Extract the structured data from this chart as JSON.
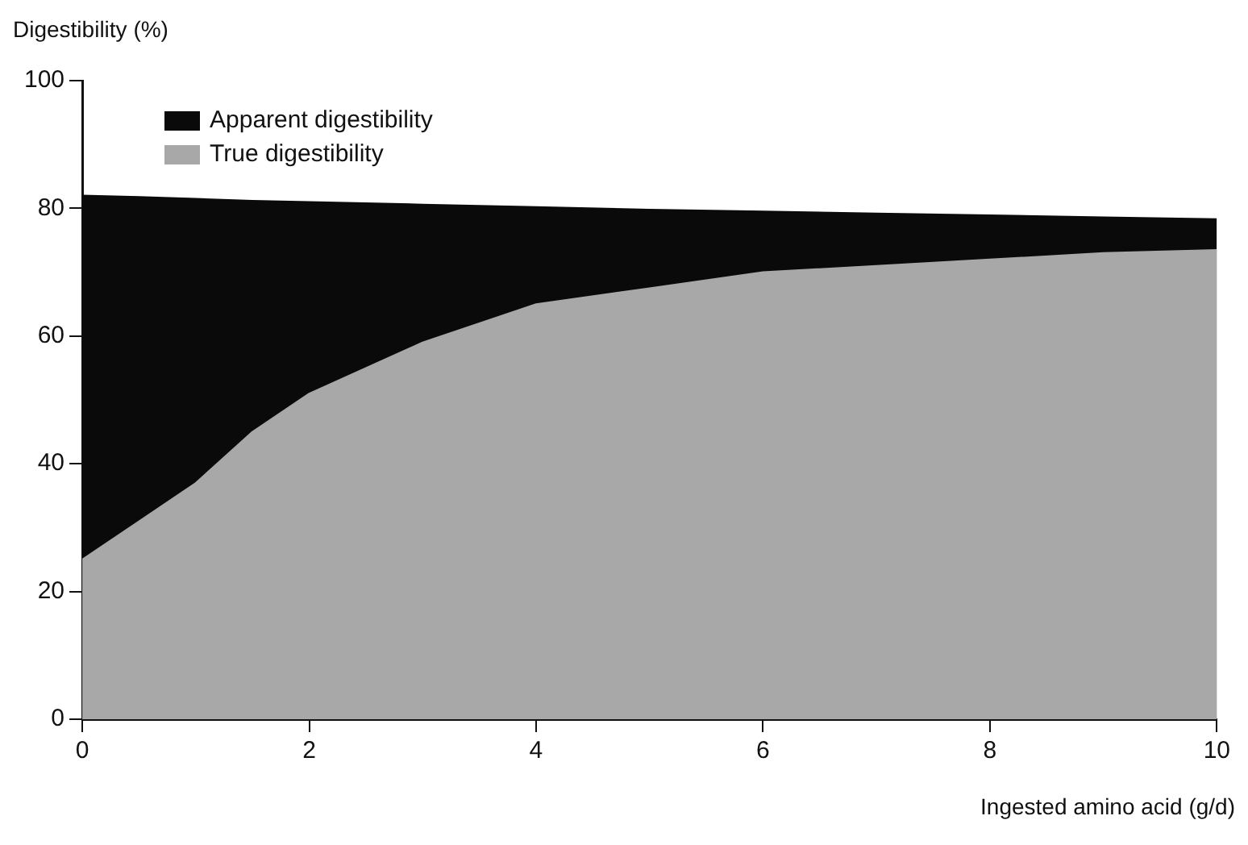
{
  "chart_data": {
    "type": "area",
    "ylabel": "Digestibility (%)",
    "xlabel": "Ingested amino acid (g/d)",
    "x": [
      0,
      0.5,
      1,
      1.5,
      2,
      3,
      4,
      5,
      6,
      7,
      8,
      9,
      10
    ],
    "series": [
      {
        "name": "Apparent digestibility",
        "color": "#0a0a0a",
        "values": [
          82,
          81.8,
          81.5,
          81.2,
          81,
          80.6,
          80.2,
          79.8,
          79.5,
          79.2,
          78.9,
          78.6,
          78.3
        ]
      },
      {
        "name": "True digestibility",
        "color": "#a8a8a8",
        "values": [
          25,
          31,
          37,
          45,
          51,
          59,
          65,
          67.5,
          70,
          71,
          72,
          73,
          73.5
        ]
      }
    ],
    "xlim": [
      0,
      10
    ],
    "xticks": [
      0,
      2,
      4,
      6,
      8,
      10
    ],
    "ylim": [
      0,
      100
    ],
    "yticks": [
      0,
      20,
      40,
      60,
      80,
      100
    ],
    "grid": false,
    "legend": "top left"
  }
}
